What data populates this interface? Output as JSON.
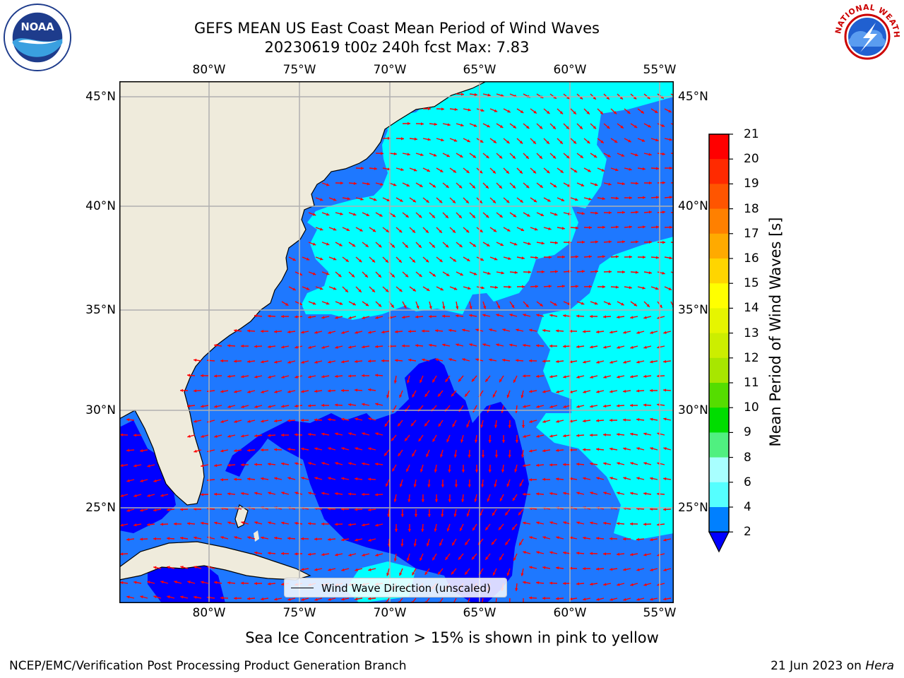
{
  "title_line1": "GEFS MEAN US East Coast Mean Period of Wind Waves",
  "title_line2": "20230619 t00z 240h fcst   Max: 7.83",
  "lon_labels": [
    "80°W",
    "75°W",
    "70°W",
    "65°W",
    "60°W",
    "55°W"
  ],
  "lat_labels": [
    "45°N",
    "40°N",
    "35°N",
    "30°N",
    "25°N"
  ],
  "legend_text": "Wind Wave Direction (unscaled)",
  "colorbar": {
    "label": "Mean Period of Wind Waves [s]",
    "ticks": [
      "21",
      "20",
      "19",
      "18",
      "17",
      "16",
      "15",
      "14",
      "13",
      "12",
      "11",
      "10",
      "9",
      "8",
      "6",
      "4",
      "2"
    ],
    "colors": [
      "#ff0000",
      "#ff2a00",
      "#ff5500",
      "#ff8000",
      "#ffaa00",
      "#ffd500",
      "#ffff00",
      "#e6f500",
      "#ccee00",
      "#a8e600",
      "#55dd00",
      "#00dd00",
      "#50f080",
      "#a8ffff",
      "#55ffff",
      "#00ffff",
      "#0080ff"
    ],
    "under_color": "#0000ff"
  },
  "colors": {
    "land": "#efebdc",
    "sea_low": "#0000ff",
    "sea_mid": "#1e78ff",
    "sea_high": "#00ffff",
    "arrow": "#ff0000"
  },
  "sea_ice_note": "Sea Ice Concentration > 15% is shown in pink to yellow",
  "footer_left": "NCEP/EMC/Verification Post Processing Product Generation Branch",
  "footer_right_date": "21 Jun 2023 on",
  "footer_right_host": "Hera",
  "logos": {
    "noaa_text": "NOAA",
    "nws_text": "NATIONAL WEATHER SERVICE"
  }
}
